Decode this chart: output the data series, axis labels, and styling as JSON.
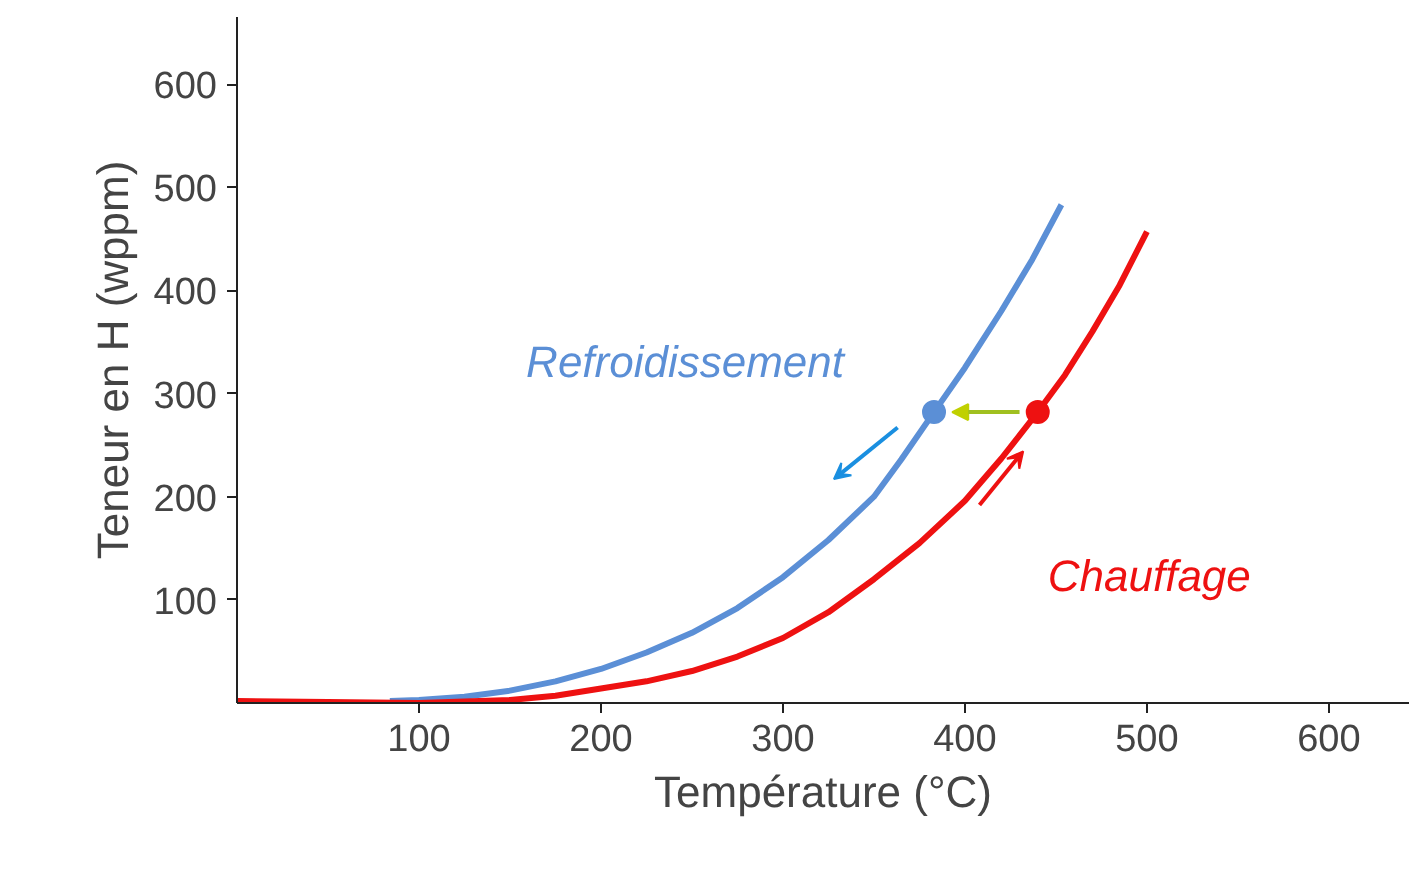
{
  "chart_data": {
    "type": "line",
    "xlabel": "Température (°C)",
    "ylabel": "Teneur en H (wppm)",
    "xlim": [
      0,
      644
    ],
    "ylim": [
      0,
      665
    ],
    "xticks": [
      100,
      200,
      300,
      400,
      500,
      600
    ],
    "yticks": [
      100,
      200,
      300,
      400,
      500,
      600
    ],
    "grid": false,
    "series": [
      {
        "name": "Refroidissement",
        "color": "#5b8fd6",
        "x": [
          84,
          100,
          125,
          150,
          175,
          200,
          225,
          250,
          275,
          300,
          325,
          350,
          365,
          383,
          400,
          420,
          437,
          453
        ],
        "values": [
          2,
          3,
          6,
          12,
          21,
          33,
          49,
          68,
          92,
          122,
          158,
          200,
          236,
          282,
          325,
          380,
          430,
          483
        ]
      },
      {
        "name": "Chauffage",
        "color": "#ee1111",
        "x": [
          0,
          50,
          100,
          150,
          175,
          200,
          225,
          250,
          275,
          300,
          325,
          350,
          375,
          400,
          420,
          440,
          455,
          470,
          485,
          500
        ],
        "values": [
          2,
          1,
          0,
          3,
          7,
          14,
          21,
          31,
          45,
          63,
          88,
          120,
          155,
          196,
          237,
          282,
          318,
          360,
          405,
          457
        ]
      },
      {
        "type": "scatter",
        "color": "#5b8fd6",
        "x": [
          383
        ],
        "values": [
          282
        ]
      },
      {
        "type": "scatter",
        "color": "#ee1111",
        "x": [
          440
        ],
        "values": [
          282
        ]
      }
    ]
  }
}
